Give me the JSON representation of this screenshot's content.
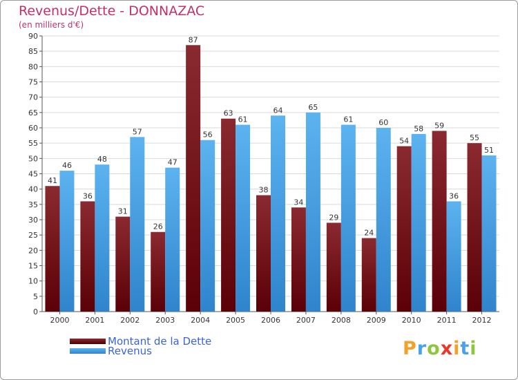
{
  "header": {
    "title": "Revenus/Dette - DONNAZAC",
    "subtitle": "(en milliers d'€)"
  },
  "legend": {
    "items": [
      {
        "label": "Montant de la Dette",
        "color": "#6e1015"
      },
      {
        "label": "Revenus",
        "color": "#4aa3e6"
      }
    ]
  },
  "logo": {
    "letters": [
      "P",
      "r",
      "o",
      "x",
      "i",
      "t",
      "i"
    ],
    "colors": [
      "#f2a12a",
      "#4aa3e6",
      "#8fc63f",
      "#e8372b",
      "#f2a12a",
      "#4aa3e6",
      "#8fc63f"
    ]
  },
  "chart_data": {
    "type": "bar",
    "title": "Revenus/Dette - DONNAZAC",
    "subtitle": "(en milliers d'€)",
    "categories": [
      "2000",
      "2001",
      "2002",
      "2003",
      "2004",
      "2005",
      "2006",
      "2007",
      "2008",
      "2009",
      "2010",
      "2011",
      "2012"
    ],
    "series": [
      {
        "name": "Montant de la Dette",
        "color": "#6e1015",
        "values": [
          41,
          36,
          31,
          26,
          87,
          63,
          38,
          34,
          29,
          24,
          54,
          59,
          55
        ]
      },
      {
        "name": "Revenus",
        "color": "#4aa3e6",
        "values": [
          46,
          48,
          57,
          47,
          56,
          61,
          64,
          65,
          61,
          60,
          58,
          36,
          51
        ]
      }
    ],
    "ylim": [
      0,
      90
    ],
    "yticks": [
      0,
      5,
      10,
      15,
      20,
      25,
      30,
      35,
      40,
      45,
      50,
      55,
      60,
      65,
      70,
      75,
      80,
      85,
      90
    ],
    "grid": true,
    "legend": "bottom-left"
  }
}
